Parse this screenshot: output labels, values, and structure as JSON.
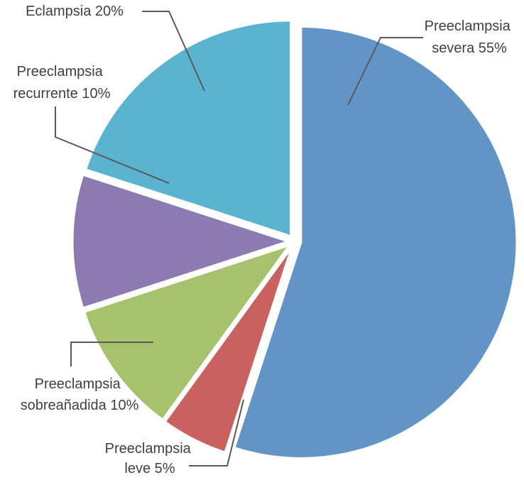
{
  "chart_data": {
    "type": "pie",
    "title": "",
    "slices": [
      {
        "label_lines": [
          "Preeclampsia",
          "severa 55%"
        ],
        "value": 55,
        "color": "#6295c6"
      },
      {
        "label_lines": [
          "Preeclampsia",
          "leve 5%"
        ],
        "value": 5,
        "color": "#c9615e"
      },
      {
        "label_lines": [
          "Preeclampsia",
          "sobreañadida 10%"
        ],
        "value": 10,
        "color": "#a6c26d"
      },
      {
        "label_lines": [
          "Preeclampsia",
          "recurrente 10%"
        ],
        "value": 10,
        "color": "#8c7bb1"
      },
      {
        "label_lines": [
          "Eclampsia 20%"
        ],
        "value": 20,
        "color": "#5ab3cf"
      }
    ]
  }
}
